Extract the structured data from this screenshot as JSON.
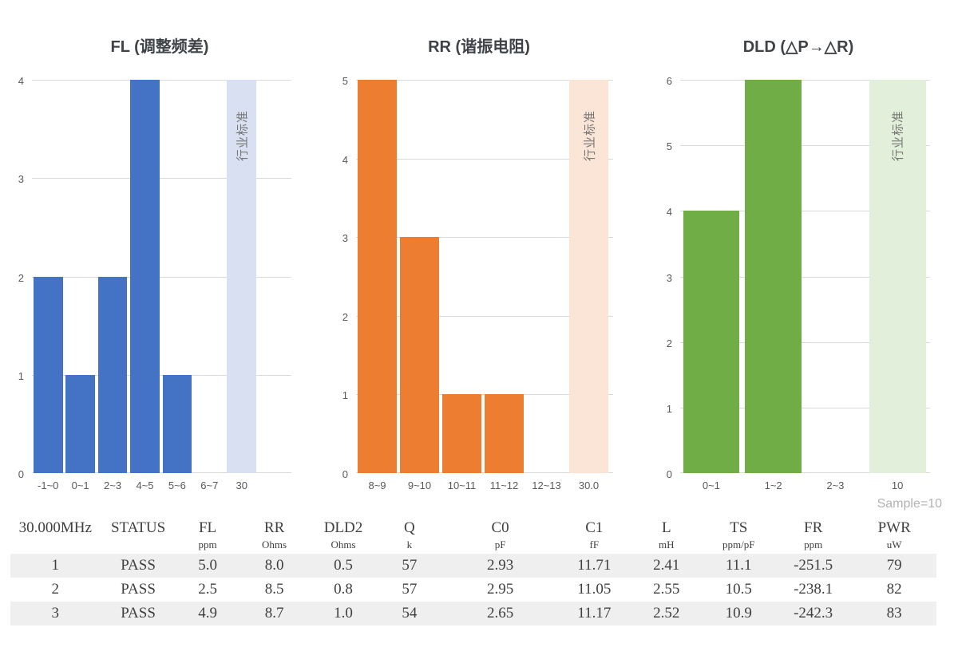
{
  "chart_data": [
    {
      "type": "bar",
      "title": "FL (调整频差)",
      "categories": [
        "-1~0",
        "0~1",
        "2~3",
        "4~5",
        "5~6",
        "6~7",
        "30"
      ],
      "values": [
        2,
        1,
        2,
        4,
        1,
        0,
        null
      ],
      "band_index": 6,
      "band_label": "行业标准",
      "ylim": [
        0,
        4
      ],
      "yticks": [
        0,
        1,
        2,
        3,
        4
      ],
      "bar_color": "#4472C4",
      "band_color": "#D9E0F2",
      "grid": true,
      "legend": "none"
    },
    {
      "type": "bar",
      "title": "RR (谐振电阻)",
      "categories": [
        "8~9",
        "9~10",
        "10~11",
        "11~12",
        "12~13",
        "30.0"
      ],
      "values": [
        5,
        3,
        1,
        1,
        0,
        null
      ],
      "band_index": 5,
      "band_label": "行业标准",
      "ylim": [
        0,
        5
      ],
      "yticks": [
        0,
        1,
        2,
        3,
        4,
        5
      ],
      "bar_color": "#ED7D31",
      "band_color": "#FBE5D6",
      "grid": true,
      "legend": "none"
    },
    {
      "type": "bar",
      "title": "DLD (△P→△R)",
      "categories": [
        "0~1",
        "1~2",
        "2~3",
        "10"
      ],
      "values": [
        4,
        6,
        0,
        null
      ],
      "band_index": 3,
      "band_label": "行业标准",
      "ylim": [
        0,
        6
      ],
      "yticks": [
        0,
        1,
        2,
        3,
        4,
        5,
        6
      ],
      "bar_color": "#70AD47",
      "band_color": "#E2EFDA",
      "grid": true,
      "legend": "none"
    }
  ],
  "table": {
    "sample_label": "Sample=10",
    "columns": [
      {
        "name": "30.000MHz",
        "unit": ""
      },
      {
        "name": "STATUS",
        "unit": ""
      },
      {
        "name": "FL",
        "unit": "ppm"
      },
      {
        "name": "RR",
        "unit": "Ohms"
      },
      {
        "name": "DLD2",
        "unit": "Ohms"
      },
      {
        "name": "Q",
        "unit": "k"
      },
      {
        "name": "C0",
        "unit": "pF"
      },
      {
        "name": "C1",
        "unit": "fF"
      },
      {
        "name": "L",
        "unit": "mH"
      },
      {
        "name": "TS",
        "unit": "ppm/pF"
      },
      {
        "name": "FR",
        "unit": "ppm"
      },
      {
        "name": "PWR",
        "unit": "uW"
      }
    ],
    "rows": [
      [
        "1",
        "PASS",
        "5.0",
        "8.0",
        "0.5",
        "57",
        "2.93",
        "11.71",
        "2.41",
        "11.1",
        "-251.5",
        "79"
      ],
      [
        "2",
        "PASS",
        "2.5",
        "8.5",
        "0.8",
        "57",
        "2.95",
        "11.05",
        "2.55",
        "10.5",
        "-238.1",
        "82"
      ],
      [
        "3",
        "PASS",
        "4.9",
        "8.7",
        "1.0",
        "54",
        "2.65",
        "11.17",
        "2.52",
        "10.9",
        "-242.3",
        "83"
      ]
    ]
  },
  "colors": {
    "gridline": "#D9D9D9",
    "tick_text": "#595959",
    "band_text": "#767676",
    "table_text": "#404040",
    "stripe": "#F0EFF0",
    "sample_text": "#B3B3B3"
  }
}
